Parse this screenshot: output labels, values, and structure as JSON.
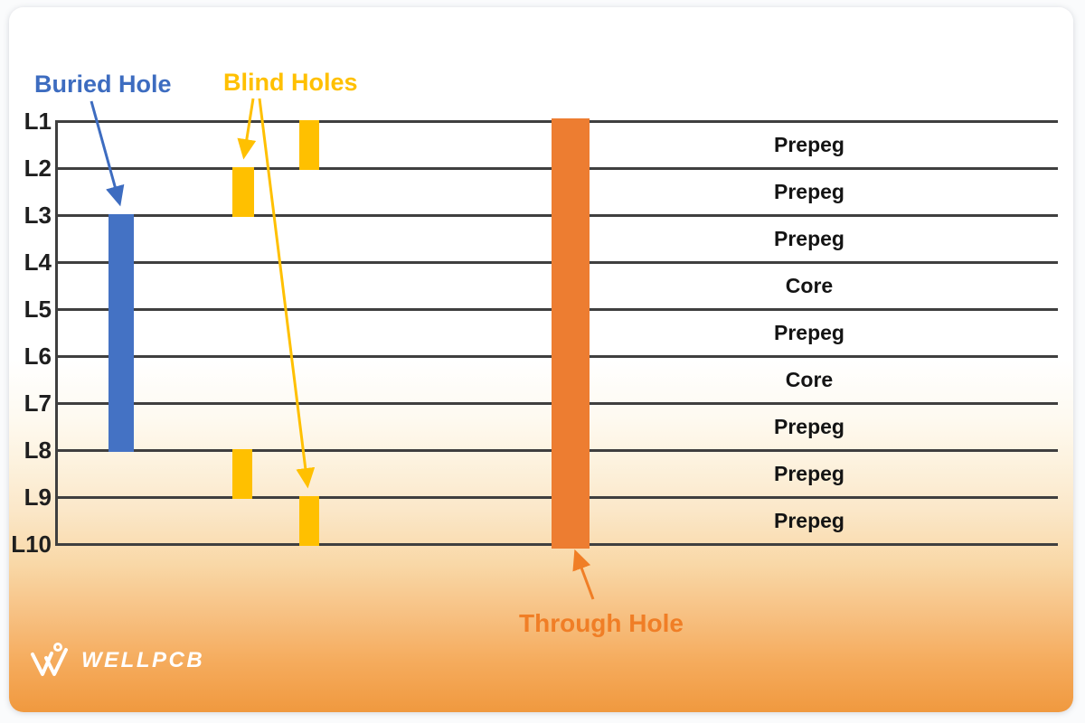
{
  "diagram": {
    "labels": {
      "buried_hole": "Buried Hole",
      "blind_holes": "Blind Holes",
      "through_hole": "Through Hole"
    },
    "layers": [
      "L1",
      "L2",
      "L3",
      "L4",
      "L5",
      "L6",
      "L7",
      "L8",
      "L9",
      "L10"
    ],
    "materials": [
      "Prepeg",
      "Prepeg",
      "Prepeg",
      "Core",
      "Prepeg",
      "Core",
      "Prepeg",
      "Prepeg",
      "Prepeg"
    ],
    "holes": [
      {
        "type": "buried",
        "span": "L3-L8",
        "color": "#4472c4"
      },
      {
        "type": "blind",
        "span": "L1-L2",
        "color": "#ffc000"
      },
      {
        "type": "blind",
        "span": "L2-L3",
        "color": "#ffc000"
      },
      {
        "type": "blind",
        "span": "L8-L9",
        "color": "#ffc000"
      },
      {
        "type": "blind",
        "span": "L9-L10",
        "color": "#ffc000"
      },
      {
        "type": "through",
        "span": "L1-L10",
        "color": "#ed7d31"
      }
    ],
    "colors": {
      "buried_label": "#3d6cc0",
      "blind_label": "#ffc000",
      "through_label": "#f07e26",
      "layer_line": "#3f3f3f",
      "layer_text": "#1f1f1f",
      "card_gradient_bottom": "#f0993f"
    }
  },
  "brand": {
    "name": "WELLPCB"
  }
}
